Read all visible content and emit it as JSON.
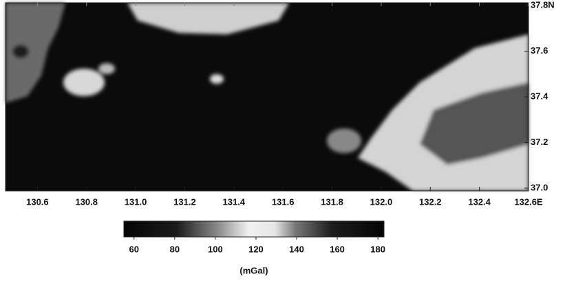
{
  "map": {
    "xlim": [
      130.47,
      132.6
    ],
    "xticks": [
      130.6,
      130.8,
      {
        "value": 131.0,
        "label": "131.0"
      },
      131.2,
      131.4,
      131.6,
      131.8,
      {
        "value": 132.0,
        "label": "132.0"
      },
      132.2,
      132.4,
      {
        "value": 132.6,
        "label": "132.6E"
      }
    ],
    "ylim": [
      37.0,
      37.8
    ],
    "yticks": [
      {
        "value": 37.0,
        "label": "37.0"
      },
      37.2,
      37.4,
      37.6,
      {
        "value": 37.8,
        "label": "37.8N"
      }
    ]
  },
  "colorbar": {
    "lim": [
      55,
      183
    ],
    "ticks": [
      60,
      80,
      100,
      120,
      140,
      160,
      180
    ],
    "unit": "(mGal)"
  }
}
